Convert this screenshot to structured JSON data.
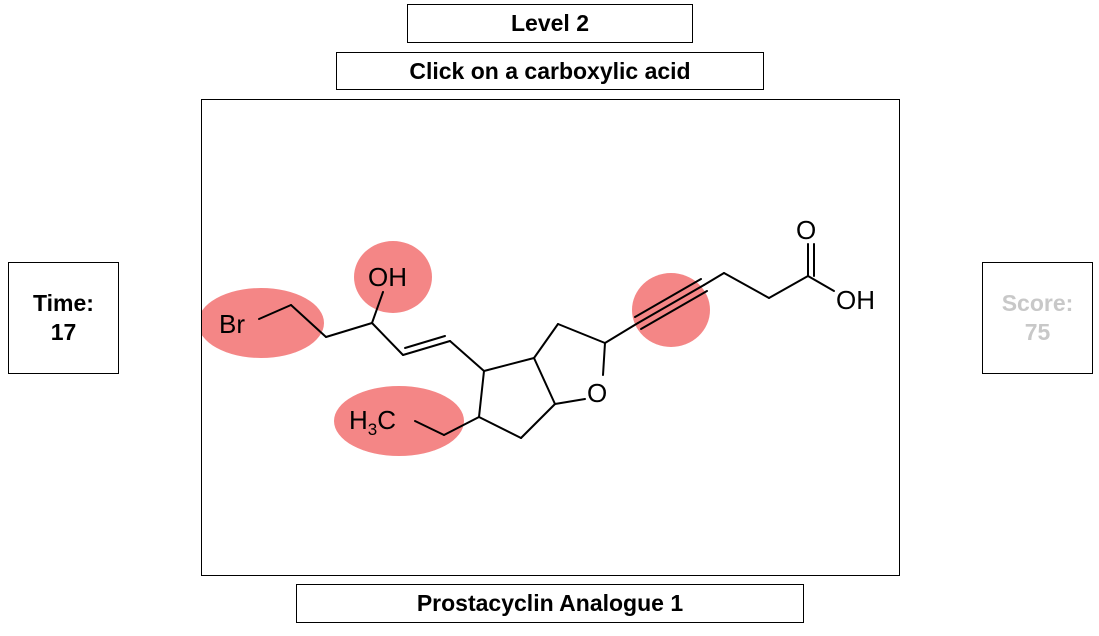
{
  "header": {
    "level_label": "Level 2",
    "prompt": "Click on a carboxylic acid"
  },
  "timer": {
    "label": "Time:",
    "value": "17"
  },
  "score": {
    "label": "Score:",
    "value": "75"
  },
  "molecule": {
    "name": "Prostacyclin Analogue 1",
    "atom_labels": {
      "br": "Br",
      "oh_hydroxyl": "OH",
      "h3c_h": "H",
      "h3c_sub": "3",
      "h3c_c": "C",
      "ring_o": "O",
      "carbonyl_o": "O",
      "acid_oh": "OH"
    }
  },
  "colors": {
    "highlight": "#f26b6b",
    "score_text": "#c8c8c8"
  }
}
